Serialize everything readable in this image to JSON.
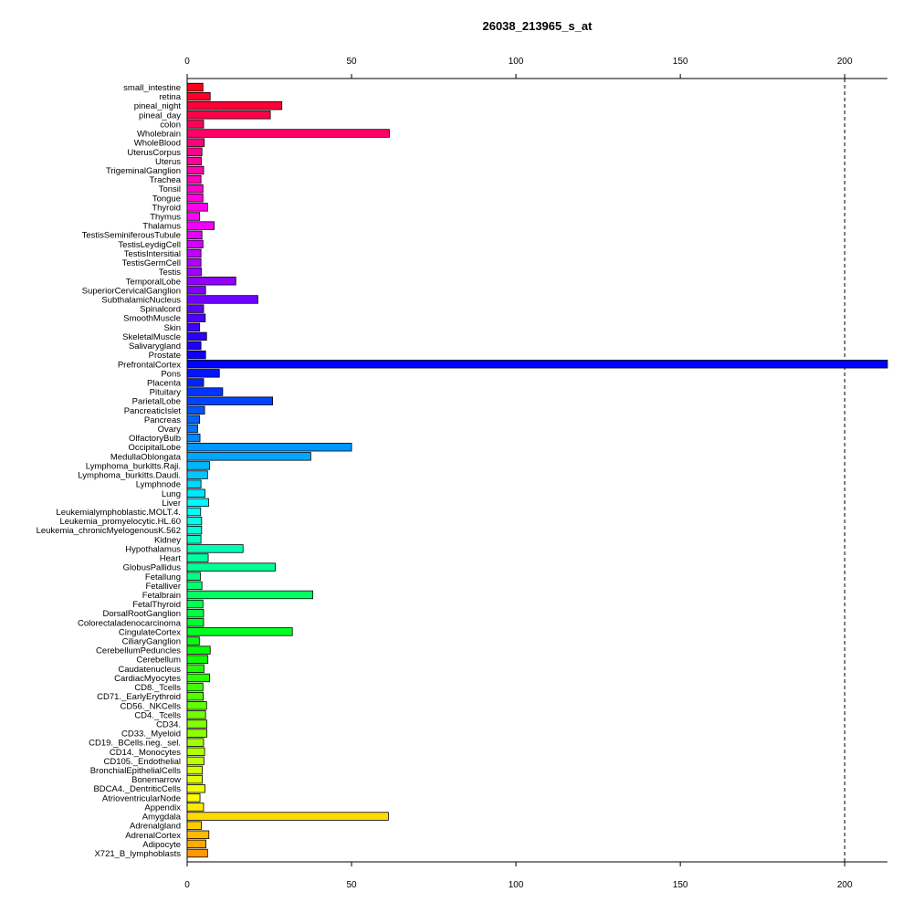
{
  "chart_data": {
    "type": "bar",
    "orientation": "horizontal",
    "title": "26038_213965_s_at",
    "xlabel": "",
    "ylabel": "",
    "xlim": [
      0,
      213
    ],
    "xticks": [
      0,
      50,
      100,
      150,
      200
    ],
    "reference_line": 200,
    "grid": false,
    "legend": "none",
    "categories": [
      "small_intestine",
      "retina",
      "pineal_night",
      "pineal_day",
      "colon",
      "Wholebrain",
      "WholeBlood",
      "UterusCorpus",
      "Uterus",
      "TrigeminalGanglion",
      "Trachea",
      "Tonsil",
      "Tongue",
      "Thyroid",
      "Thymus",
      "Thalamus",
      "TestisSeminiferousTubule",
      "TestisLeydigCell",
      "TestisIntersitial",
      "TestisGermCell",
      "Testis",
      "TemporalLobe",
      "SuperiorCervicalGanglion",
      "SubthalamicNucleus",
      "Spinalcord",
      "SmoothMuscle",
      "Skin",
      "SkeletalMuscle",
      "Salivarygland",
      "Prostate",
      "PrefrontalCortex",
      "Pons",
      "Placenta",
      "Pituitary",
      "ParietalLobe",
      "PancreaticIslet",
      "Pancreas",
      "Ovary",
      "OlfactoryBulb",
      "OccipitalLobe",
      "MedullaOblongata",
      "Lymphoma_burkitts.Raji.",
      "Lymphoma_burkitts.Daudi.",
      "Lymphnode",
      "Lung",
      "Liver",
      "Leukemialymphoblastic.MOLT.4.",
      "Leukemia_promyelocytic.HL.60",
      "Leukemia_chronicMyelogenousK.562",
      "Kidney",
      "Hypothalamus",
      "Heart",
      "GlobusPallidus",
      "Fetallung",
      "Fetalliver",
      "Fetalbrain",
      "FetalThyroid",
      "DorsalRootGanglion",
      "Colorectaladenocarcinoma",
      "CingulateCortex",
      "CiliaryGanglion",
      "CerebellumPeduncles",
      "Cerebellum",
      "Caudatenucleus",
      "CardiacMyocytes",
      "CD8._Tcells",
      "CD71._EarlyErythroid",
      "CD56._NKCells",
      "CD4._Tcells",
      "CD34.",
      "CD33._Myeloid",
      "CD19._BCells.neg._sel.",
      "CD14._Monocytes",
      "CD105._Endothelial",
      "BronchialEpithelialCells",
      "Bonemarrow",
      "BDCA4._DentriticCells",
      "AtrioventricularNode",
      "Appendix",
      "Amygdala",
      "Adrenalgland",
      "AdrenalCortex",
      "Adipocyte",
      "X721_B_lymphoblasts"
    ],
    "values": [
      4.8,
      7.0,
      28.8,
      25.3,
      5.0,
      61.5,
      5.2,
      4.5,
      4.3,
      5.0,
      4.2,
      4.8,
      4.8,
      6.2,
      3.8,
      8.2,
      4.5,
      4.8,
      4.2,
      4.2,
      4.3,
      14.8,
      5.6,
      21.5,
      5.0,
      5.5,
      3.8,
      5.9,
      4.2,
      5.6,
      213.0,
      9.8,
      5.0,
      10.8,
      26.0,
      5.3,
      3.8,
      3.2,
      3.9,
      50.0,
      37.6,
      6.8,
      6.2,
      4.2,
      5.4,
      6.5,
      4.1,
      4.4,
      4.4,
      4.2,
      17.0,
      6.4,
      26.8,
      4.0,
      4.5,
      38.2,
      4.8,
      5.0,
      5.0,
      32.0,
      3.7,
      7.0,
      6.3,
      5.1,
      6.8,
      4.8,
      4.9,
      5.9,
      5.6,
      6.0,
      6.0,
      5.0,
      5.3,
      5.1,
      4.6,
      4.6,
      5.4,
      3.9,
      5.0,
      61.2,
      4.3,
      6.6,
      5.7,
      6.2
    ],
    "colors": [
      "#FF0018",
      "#FF0028",
      "#FF0038",
      "#FF0048",
      "#FF0059",
      "#FF0069",
      "#FF0079",
      "#FF0089",
      "#FF009A",
      "#FF00AA",
      "#FF00BA",
      "#FF00CB",
      "#FF00DB",
      "#FF00EB",
      "#FF00FB",
      "#F200FF",
      "#E200FF",
      "#D100FF",
      "#C100FF",
      "#B100FF",
      "#A000FF",
      "#9000FF",
      "#8000FF",
      "#7000FF",
      "#5F00FF",
      "#4F00FF",
      "#3F00FF",
      "#2E00FF",
      "#1E00FF",
      "#0E00FF",
      "#0003FF",
      "#0014FF",
      "#0024FF",
      "#0034FF",
      "#0044FF",
      "#0055FF",
      "#0065FF",
      "#0075FF",
      "#0086FF",
      "#0096FF",
      "#00A6FF",
      "#00B6FF",
      "#00C7FF",
      "#00D7FF",
      "#00E7FF",
      "#00F8FF",
      "#00FFF6",
      "#00FFE6",
      "#00FFD5",
      "#00FFC5",
      "#00FFB5",
      "#00FFA4",
      "#00FF94",
      "#00FF84",
      "#00FF73",
      "#00FF63",
      "#00FF53",
      "#00FF43",
      "#00FF32",
      "#00FF22",
      "#00FF12",
      "#00FF01",
      "#0EFF00",
      "#1EFF00",
      "#2EFF00",
      "#3FFF00",
      "#4FFF00",
      "#5FFF00",
      "#70FF00",
      "#80FF00",
      "#90FF00",
      "#A1FF00",
      "#B1FF00",
      "#C1FF00",
      "#D2FF00",
      "#E2FF00",
      "#F2FF00",
      "#FFFB00",
      "#FFEB00",
      "#FFDB00",
      "#FFCA00",
      "#FFBA00",
      "#FFAA00",
      "#FF9900"
    ]
  }
}
